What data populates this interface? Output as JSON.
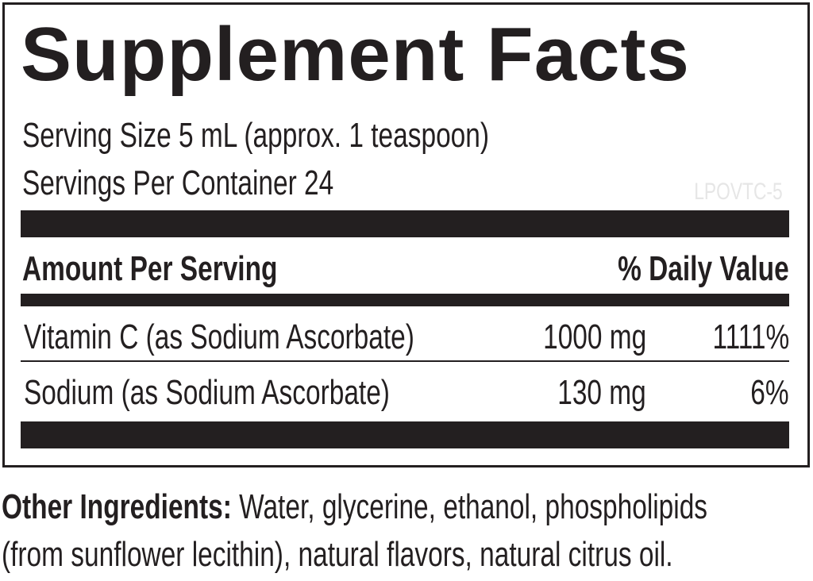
{
  "title": "Supplement Facts",
  "serving_size": "Serving Size 5 mL (approx. 1 teaspoon)",
  "servings_per_container": "Servings Per Container 24",
  "code": "LPOVTC-5",
  "header": {
    "amount": "Amount Per Serving",
    "dv": "% Daily Value"
  },
  "rows": [
    {
      "name": "Vitamin C (as Sodium Ascorbate)",
      "amount": "1000 mg",
      "dv": "1111%"
    },
    {
      "name": "Sodium (as Sodium Ascorbate)",
      "amount": "130 mg",
      "dv": "6%"
    }
  ],
  "other_ingredients": {
    "label": "Other Ingredients:",
    "line1": " Water, glycerine, ethanol, phospholipids",
    "line2": "(from sunflower lecithin), natural flavors, natural citrus oil."
  }
}
